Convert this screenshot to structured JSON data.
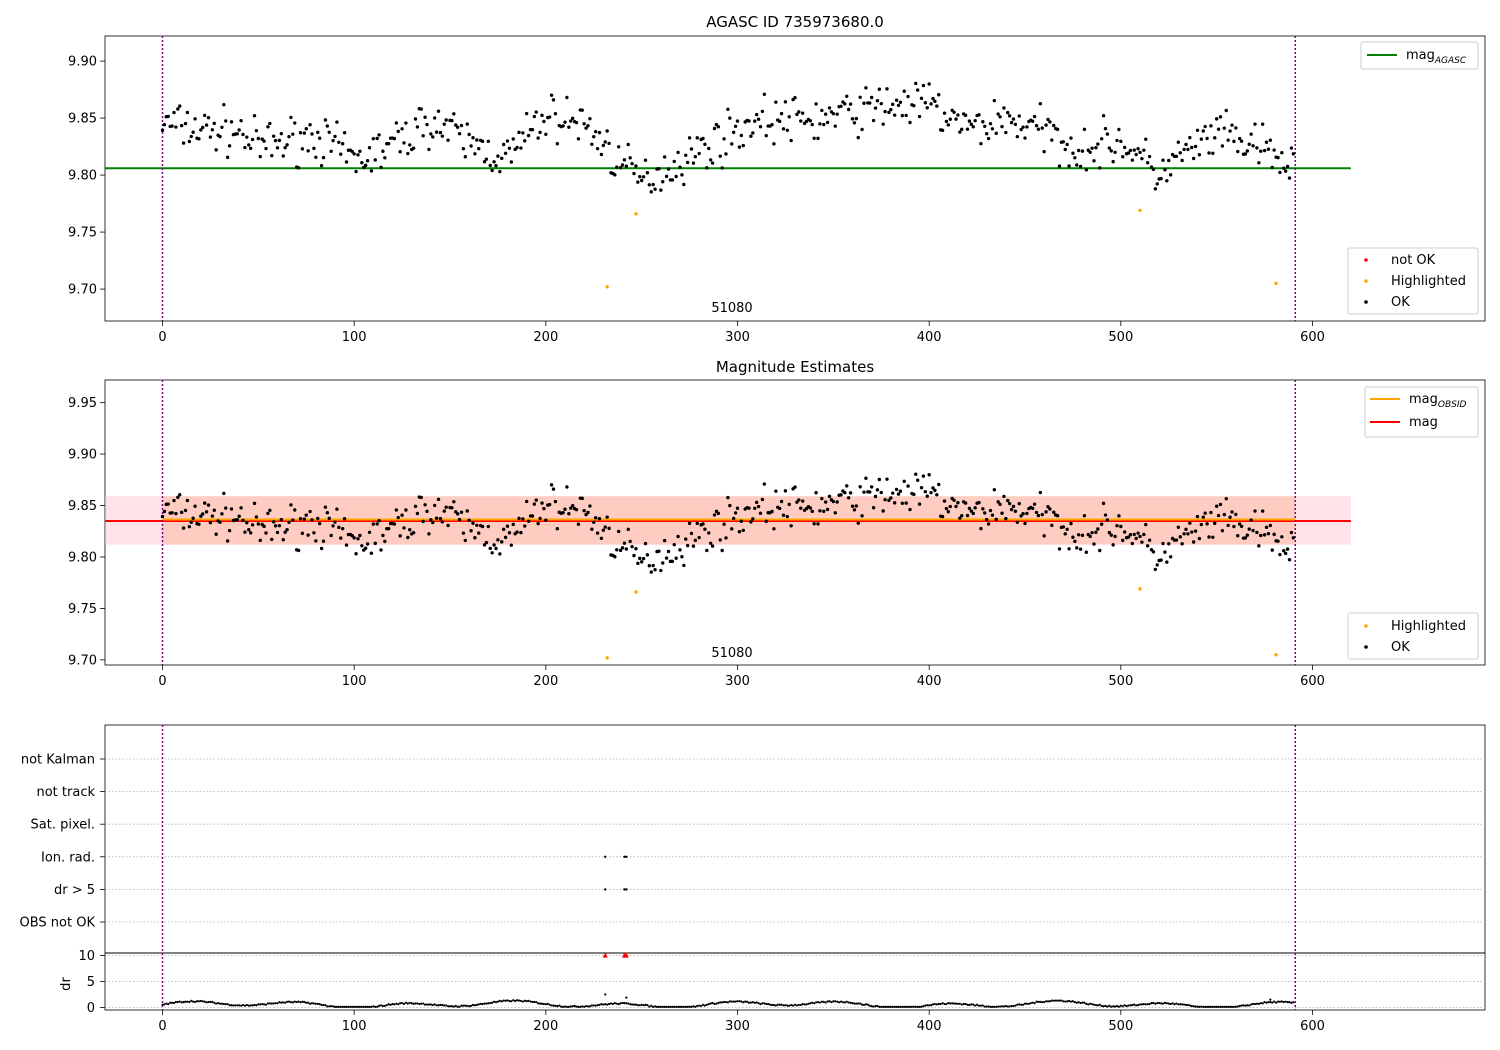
{
  "chart_data": [
    {
      "type": "scatter",
      "title": "AGASC ID 735973680.0",
      "annotation": "51080",
      "xlim": [
        -30,
        690
      ],
      "ylim": [
        9.672,
        9.922
      ],
      "x_ticks": [
        0,
        100,
        200,
        300,
        400,
        500,
        600
      ],
      "y_ticks": [
        "9.70",
        "9.75",
        "9.80",
        "9.85",
        "9.90"
      ],
      "legend_position": "top-right",
      "legend": [
        {
          "label": "mag",
          "subscript": "AGASC",
          "color": "#008000",
          "kind": "line"
        }
      ],
      "legend_lower": [
        {
          "label": "not OK",
          "color": "#ff0000"
        },
        {
          "label": "Highlighted",
          "color": "#ffa500"
        },
        {
          "label": "OK",
          "color": "#000000"
        }
      ],
      "legend_lower_position": "bottom-right",
      "reference_line": {
        "y": 9.806,
        "x_start": -30,
        "x_end": 620,
        "color": "#008000"
      },
      "vertical_lines": [
        0,
        591
      ],
      "highlighted_points": [
        [
          232,
          9.702
        ],
        [
          247,
          9.766
        ],
        [
          510,
          9.769
        ],
        [
          581,
          9.705
        ]
      ],
      "series_shape": {
        "n": 591,
        "x_start": 0,
        "x_end": 590,
        "anchors": [
          [
            0,
            9.845
          ],
          [
            20,
            9.84
          ],
          [
            40,
            9.838
          ],
          [
            50,
            9.825
          ],
          [
            80,
            9.835
          ],
          [
            100,
            9.812
          ],
          [
            120,
            9.826
          ],
          [
            140,
            9.848
          ],
          [
            160,
            9.828
          ],
          [
            180,
            9.815
          ],
          [
            200,
            9.852
          ],
          [
            220,
            9.845
          ],
          [
            230,
            9.828
          ],
          [
            240,
            9.808
          ],
          [
            250,
            9.795
          ],
          [
            270,
            9.812
          ],
          [
            290,
            9.83
          ],
          [
            310,
            9.848
          ],
          [
            340,
            9.848
          ],
          [
            380,
            9.862
          ],
          [
            400,
            9.862
          ],
          [
            420,
            9.84
          ],
          [
            440,
            9.85
          ],
          [
            460,
            9.838
          ],
          [
            480,
            9.822
          ],
          [
            500,
            9.83
          ],
          [
            520,
            9.8
          ],
          [
            530,
            9.815
          ],
          [
            550,
            9.835
          ],
          [
            570,
            9.825
          ],
          [
            590,
            9.806
          ]
        ],
        "spread": 0.018
      }
    },
    {
      "type": "scatter",
      "title": "Magnitude Estimates",
      "annotation": "51080",
      "xlim": [
        -30,
        690
      ],
      "ylim": [
        9.695,
        9.972
      ],
      "x_ticks": [
        0,
        100,
        200,
        300,
        400,
        500,
        600
      ],
      "y_ticks": [
        "9.70",
        "9.75",
        "9.80",
        "9.85",
        "9.90",
        "9.95"
      ],
      "legend_position": "top-right",
      "legend": [
        {
          "label": "mag",
          "subscript": "OBSID",
          "color": "#ffa500",
          "kind": "line"
        },
        {
          "label": "mag",
          "subscript": "",
          "color": "#ff0000",
          "kind": "line"
        }
      ],
      "legend_lower": [
        {
          "label": "Highlighted",
          "color": "#ffa500"
        },
        {
          "label": "OK",
          "color": "#000000"
        }
      ],
      "legend_lower_position": "bottom-right",
      "mag_line": {
        "y": 9.835,
        "x_start": -30,
        "x_end": 620
      },
      "mag_obsid_line": {
        "y": 9.835,
        "x_start": 0,
        "x_end": 591
      },
      "band": {
        "y_low": 9.812,
        "y_high": 9.859
      },
      "vertical_lines": [
        0,
        591
      ],
      "highlighted_points": [
        [
          232,
          9.702
        ],
        [
          247,
          9.766
        ],
        [
          510,
          9.769
        ],
        [
          581,
          9.705
        ]
      ]
    },
    {
      "type": "scatter",
      "xlim": [
        -30,
        690
      ],
      "x_ticks": [
        0,
        100,
        200,
        300,
        400,
        500,
        600
      ],
      "flag_rows": [
        "not Kalman",
        "not track",
        "Sat. pixel.",
        "Ion. rad.",
        "dr > 5",
        "OBS not OK"
      ],
      "flagged_points": {
        "Ion. rad.": [
          231,
          241,
          242
        ],
        "dr > 5": [
          231,
          241,
          242
        ]
      },
      "dr_axis": {
        "label": "dr",
        "ylim": [
          -0.5,
          10.5
        ],
        "y_ticks": [
          0,
          5,
          10
        ]
      },
      "dr_flag_markers": [
        [
          231,
          10
        ],
        [
          241,
          10
        ],
        [
          242,
          10
        ]
      ],
      "dr_spike": [
        [
          231,
          2.5
        ],
        [
          242,
          1.9
        ],
        [
          578,
          1.5
        ]
      ],
      "vertical_lines": [
        0,
        591
      ]
    }
  ]
}
